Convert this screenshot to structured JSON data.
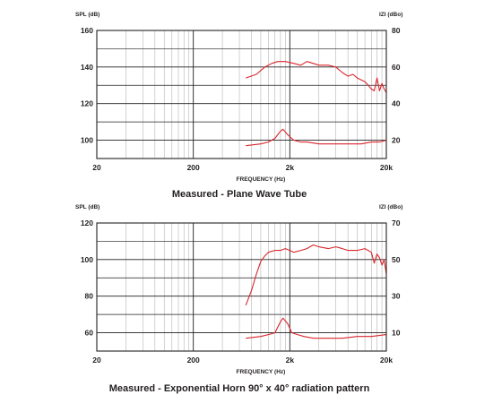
{
  "chart_data": [
    {
      "type": "line",
      "title": "Measured - Plane Wave Tube",
      "xlabel": "FREQUENCY (Hz)",
      "ylabel": "SPL (dB)",
      "y2label": "IZI (dBo)",
      "xscale": "log",
      "xlim": [
        20,
        20000
      ],
      "ylim": [
        90,
        160
      ],
      "y2lim": [
        10,
        80
      ],
      "x_ticks": [
        "20",
        "200",
        "2k",
        "20k"
      ],
      "y_ticks": [
        "160",
        "140",
        "120",
        "100"
      ],
      "y2_ticks": [
        "80",
        "60",
        "40",
        "20"
      ],
      "series": [
        {
          "axis": "left",
          "x": [
            700,
            900,
            1100,
            1300,
            1500,
            1800,
            2200,
            2600,
            3000,
            3500,
            4000,
            5000,
            6000,
            7000,
            8000,
            9000,
            10000,
            11000,
            12000,
            13000,
            14000,
            15000,
            16000,
            17000,
            18000,
            19000,
            20000
          ],
          "y": [
            134,
            136,
            140,
            142,
            143,
            143,
            142,
            141,
            143,
            142,
            141,
            141,
            140,
            137,
            135,
            136,
            134,
            133,
            132,
            130,
            128,
            127,
            134,
            127,
            131,
            128,
            126
          ]
        },
        {
          "axis": "right",
          "x": [
            700,
            1000,
            1200,
            1400,
            1600,
            1700,
            1900,
            2200,
            2600,
            3000,
            4000,
            5000,
            7000,
            9000,
            11000,
            14000,
            17000,
            20000
          ],
          "y": [
            17,
            18,
            19,
            21,
            25,
            26,
            23,
            20,
            19,
            19,
            18,
            18,
            18,
            18,
            18,
            19,
            19,
            20
          ]
        }
      ]
    },
    {
      "type": "line",
      "title": "Measured - Exponential Horn 90° x 40° radiation pattern",
      "xlabel": "FREQUENCY (Hz)",
      "ylabel": "SPL (dB)",
      "y2label": "IZI (dBo)",
      "xscale": "log",
      "xlim": [
        20,
        20000
      ],
      "ylim": [
        50,
        120
      ],
      "y2lim": [
        0,
        70
      ],
      "x_ticks": [
        "20",
        "200",
        "2k",
        "20k"
      ],
      "y_ticks": [
        "120",
        "100",
        "80",
        "60"
      ],
      "y2_ticks": [
        "70",
        "50",
        "30",
        "10"
      ],
      "series": [
        {
          "axis": "left",
          "x": [
            700,
            800,
            900,
            1000,
            1100,
            1200,
            1400,
            1600,
            1800,
            2000,
            2200,
            2600,
            3000,
            3500,
            4000,
            5000,
            6000,
            7000,
            8000,
            10000,
            12000,
            14000,
            15000,
            16000,
            17000,
            18000,
            19000,
            20000
          ],
          "y": [
            75,
            83,
            92,
            99,
            102,
            104,
            105,
            105,
            106,
            105,
            104,
            105,
            106,
            108,
            107,
            106,
            107,
            106,
            105,
            105,
            106,
            104,
            98,
            103,
            101,
            97,
            100,
            92
          ]
        },
        {
          "axis": "right",
          "x": [
            700,
            1000,
            1200,
            1400,
            1600,
            1700,
            1900,
            2100,
            2400,
            2800,
            3500,
            5000,
            7000,
            10000,
            14000,
            20000
          ],
          "y": [
            7,
            8,
            9,
            10,
            16,
            18,
            15,
            10,
            9,
            8,
            7,
            7,
            7,
            8,
            8,
            9
          ]
        }
      ]
    }
  ]
}
